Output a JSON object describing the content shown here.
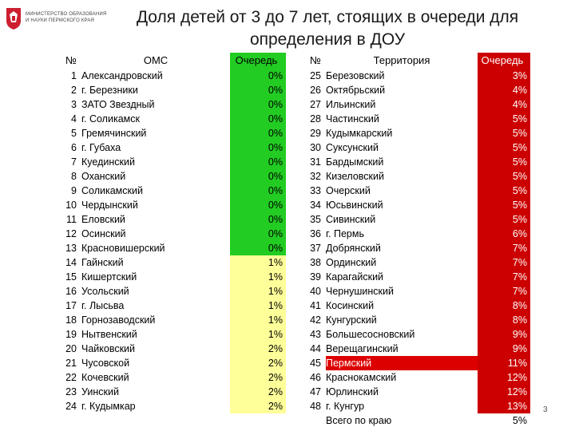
{
  "logo": {
    "line1": "МИНИСТЕРСТВО ОБРАЗОВАНИЯ",
    "line2": "И НАУКИ ПЕРМСКОГО КРАЯ",
    "crest_icon": "perm-crest-icon"
  },
  "title": "Доля детей от 3 до 7 лет, стоящих в очереди для определения в ДОУ",
  "left_table": {
    "headers": {
      "num": "№",
      "name": "ОМС",
      "queue": "Очередь"
    },
    "rows": [
      {
        "num": "1",
        "name": "Александровский",
        "value": "0%"
      },
      {
        "num": "2",
        "name": "г. Березники",
        "value": "0%"
      },
      {
        "num": "3",
        "name": "ЗАТО Звездный",
        "value": "0%"
      },
      {
        "num": "4",
        "name": "г. Соликамск",
        "value": "0%"
      },
      {
        "num": "5",
        "name": "Гремячинский",
        "value": "0%"
      },
      {
        "num": "6",
        "name": "г. Губаха",
        "value": "0%"
      },
      {
        "num": "7",
        "name": "Куединский",
        "value": "0%"
      },
      {
        "num": "8",
        "name": "Оханский",
        "value": "0%"
      },
      {
        "num": "9",
        "name": "Соликамский",
        "value": "0%"
      },
      {
        "num": "10",
        "name": "Чердынский",
        "value": "0%"
      },
      {
        "num": "11",
        "name": "Еловский",
        "value": "0%"
      },
      {
        "num": "12",
        "name": "Осинский",
        "value": "0%"
      },
      {
        "num": "13",
        "name": "Красновишерский",
        "value": "0%"
      },
      {
        "num": "14",
        "name": "Гайнский",
        "value": "1%"
      },
      {
        "num": "15",
        "name": "Кишертский",
        "value": "1%"
      },
      {
        "num": "16",
        "name": "Усольский",
        "value": "1%"
      },
      {
        "num": "17",
        "name": "г. Лысьва",
        "value": "1%"
      },
      {
        "num": "18",
        "name": "Горнозаводский",
        "value": "1%"
      },
      {
        "num": "19",
        "name": "Нытвенский",
        "value": "1%"
      },
      {
        "num": "20",
        "name": "Чайковский",
        "value": "2%"
      },
      {
        "num": "21",
        "name": "Чусовской",
        "value": "2%"
      },
      {
        "num": "22",
        "name": "Кочевский",
        "value": "2%"
      },
      {
        "num": "23",
        "name": "Уинский",
        "value": "2%"
      },
      {
        "num": "24",
        "name": "г. Кудымкар",
        "value": "2%"
      }
    ]
  },
  "right_table": {
    "headers": {
      "num": "№",
      "name": "Территория",
      "queue": "Очередь"
    },
    "rows": [
      {
        "num": "25",
        "name": "Березовский",
        "value": "3%"
      },
      {
        "num": "26",
        "name": "Октябрьский",
        "value": "4%"
      },
      {
        "num": "27",
        "name": "Ильинский",
        "value": "4%"
      },
      {
        "num": "28",
        "name": "Частинский",
        "value": "5%"
      },
      {
        "num": "29",
        "name": "Кудымкарский",
        "value": "5%"
      },
      {
        "num": "30",
        "name": "Суксунский",
        "value": "5%"
      },
      {
        "num": "31",
        "name": "Бардымский",
        "value": "5%"
      },
      {
        "num": "32",
        "name": "Кизеловский",
        "value": "5%"
      },
      {
        "num": "33",
        "name": "Очерский",
        "value": "5%"
      },
      {
        "num": "34",
        "name": "Юсьвинский",
        "value": "5%"
      },
      {
        "num": "35",
        "name": "Сивинский",
        "value": "5%"
      },
      {
        "num": "36",
        "name": "г. Пермь",
        "value": "6%"
      },
      {
        "num": "37",
        "name": "Добрянский",
        "value": "7%"
      },
      {
        "num": "38",
        "name": "Ординский",
        "value": "7%"
      },
      {
        "num": "39",
        "name": "Карагайский",
        "value": "7%"
      },
      {
        "num": "40",
        "name": "Чернушинский",
        "value": "7%"
      },
      {
        "num": "41",
        "name": "Косинский",
        "value": "8%"
      },
      {
        "num": "42",
        "name": "Кунгурский",
        "value": "8%"
      },
      {
        "num": "43",
        "name": "Большесосновский",
        "value": "9%"
      },
      {
        "num": "44",
        "name": "Верещагинский",
        "value": "9%"
      },
      {
        "num": "45",
        "name": "Пермский",
        "value": "11%"
      },
      {
        "num": "46",
        "name": "Краснокамский",
        "value": "12%"
      },
      {
        "num": "47",
        "name": "Юрлинский",
        "value": "12%"
      },
      {
        "num": "48",
        "name": "г. Кунгур",
        "value": "13%"
      }
    ],
    "total": {
      "label": "Всего по краю",
      "value": "5%"
    }
  },
  "page_number": "3",
  "colors": {
    "green": "#22cc22",
    "yellow": "#ffff99",
    "red": "#cc0000"
  }
}
